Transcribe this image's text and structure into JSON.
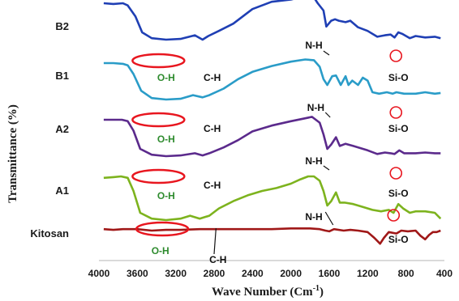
{
  "chart_data": {
    "type": "line",
    "xlabel": "Wave Number (Cm",
    "xlabel_sup": "-1",
    "xlabel_end": ")",
    "ylabel": "Transmittance (%)",
    "x_ticks": [
      4000,
      3600,
      3200,
      2800,
      2400,
      2000,
      1600,
      1200,
      800,
      400
    ],
    "x_tick_labels": [
      "4000",
      "3600",
      "3200",
      "2800",
      "2400",
      "2000",
      "1600",
      "1200",
      "800",
      "400"
    ],
    "xlim": [
      4000,
      400
    ],
    "series": [
      {
        "name": "B2",
        "color": "#1f3fb4",
        "points": [
          [
            3950,
            80
          ],
          [
            3850,
            79
          ],
          [
            3750,
            80
          ],
          [
            3700,
            77
          ],
          [
            3620,
            62
          ],
          [
            3550,
            40
          ],
          [
            3450,
            32
          ],
          [
            3300,
            30
          ],
          [
            3150,
            31
          ],
          [
            3000,
            36
          ],
          [
            2920,
            30
          ],
          [
            2860,
            35
          ],
          [
            2750,
            42
          ],
          [
            2600,
            52
          ],
          [
            2500,
            62
          ],
          [
            2400,
            72
          ],
          [
            2200,
            82
          ],
          [
            2000,
            85
          ],
          [
            1850,
            90
          ],
          [
            1780,
            92
          ],
          [
            1720,
            80
          ],
          [
            1660,
            70
          ],
          [
            1630,
            48
          ],
          [
            1580,
            56
          ],
          [
            1540,
            58
          ],
          [
            1500,
            56
          ],
          [
            1430,
            54
          ],
          [
            1380,
            56
          ],
          [
            1300,
            47
          ],
          [
            1200,
            42
          ],
          [
            1100,
            34
          ],
          [
            1020,
            36
          ],
          [
            960,
            37
          ],
          [
            920,
            33
          ],
          [
            880,
            40
          ],
          [
            840,
            38
          ],
          [
            760,
            32
          ],
          [
            700,
            35
          ],
          [
            600,
            33
          ],
          [
            500,
            34
          ],
          [
            440,
            32
          ]
        ],
        "labels": [
          {
            "text": "N-H",
            "color": "black"
          },
          {
            "text": "C-H",
            "color": "black"
          },
          {
            "text": "Si-O",
            "color": "black"
          }
        ]
      },
      {
        "name": "B1",
        "color": "#2a9cc8",
        "points": [
          [
            3950,
            80
          ],
          [
            3850,
            80
          ],
          [
            3750,
            79
          ],
          [
            3700,
            77
          ],
          [
            3640,
            65
          ],
          [
            3560,
            42
          ],
          [
            3450,
            32
          ],
          [
            3300,
            30
          ],
          [
            3150,
            31
          ],
          [
            3020,
            36
          ],
          [
            2920,
            33
          ],
          [
            2850,
            36
          ],
          [
            2700,
            45
          ],
          [
            2550,
            58
          ],
          [
            2400,
            68
          ],
          [
            2200,
            76
          ],
          [
            2000,
            82
          ],
          [
            1850,
            85
          ],
          [
            1760,
            84
          ],
          [
            1700,
            75
          ],
          [
            1660,
            58
          ],
          [
            1620,
            50
          ],
          [
            1570,
            62
          ],
          [
            1530,
            63
          ],
          [
            1480,
            50
          ],
          [
            1430,
            62
          ],
          [
            1400,
            50
          ],
          [
            1360,
            56
          ],
          [
            1300,
            50
          ],
          [
            1250,
            60
          ],
          [
            1200,
            56
          ],
          [
            1150,
            40
          ],
          [
            1080,
            38
          ],
          [
            1000,
            40
          ],
          [
            940,
            38
          ],
          [
            900,
            40
          ],
          [
            820,
            38
          ],
          [
            700,
            38
          ],
          [
            600,
            40
          ],
          [
            500,
            38
          ],
          [
            440,
            39
          ]
        ],
        "labels": [
          {
            "text": "N-H",
            "color": "black"
          },
          {
            "text": "C-H",
            "color": "black"
          },
          {
            "text": "Si-O",
            "color": "black"
          }
        ]
      },
      {
        "name": "A2",
        "color": "#5b2a8c",
        "points": [
          [
            3950,
            80
          ],
          [
            3850,
            80
          ],
          [
            3760,
            80
          ],
          [
            3700,
            78
          ],
          [
            3640,
            65
          ],
          [
            3570,
            40
          ],
          [
            3450,
            32
          ],
          [
            3300,
            30
          ],
          [
            3150,
            31
          ],
          [
            3000,
            34
          ],
          [
            2920,
            31
          ],
          [
            2850,
            34
          ],
          [
            2700,
            42
          ],
          [
            2550,
            52
          ],
          [
            2400,
            64
          ],
          [
            2200,
            72
          ],
          [
            2000,
            78
          ],
          [
            1850,
            82
          ],
          [
            1780,
            84
          ],
          [
            1700,
            76
          ],
          [
            1660,
            60
          ],
          [
            1620,
            40
          ],
          [
            1580,
            46
          ],
          [
            1530,
            56
          ],
          [
            1490,
            44
          ],
          [
            1430,
            47
          ],
          [
            1350,
            44
          ],
          [
            1200,
            38
          ],
          [
            1100,
            33
          ],
          [
            1020,
            35
          ],
          [
            960,
            34
          ],
          [
            920,
            33
          ],
          [
            870,
            38
          ],
          [
            820,
            34
          ],
          [
            700,
            34
          ],
          [
            600,
            35
          ],
          [
            500,
            34
          ],
          [
            440,
            34
          ]
        ],
        "labels": [
          {
            "text": "N-H",
            "color": "black"
          },
          {
            "text": "C-H",
            "color": "black"
          },
          {
            "text": "Si-O",
            "color": "black"
          }
        ]
      },
      {
        "name": "A1",
        "color": "#7db31e",
        "points": [
          [
            3950,
            78
          ],
          [
            3850,
            79
          ],
          [
            3770,
            80
          ],
          [
            3700,
            78
          ],
          [
            3640,
            60
          ],
          [
            3570,
            30
          ],
          [
            3450,
            22
          ],
          [
            3300,
            20
          ],
          [
            3150,
            22
          ],
          [
            3050,
            26
          ],
          [
            2950,
            22
          ],
          [
            2850,
            26
          ],
          [
            2750,
            36
          ],
          [
            2600,
            46
          ],
          [
            2450,
            54
          ],
          [
            2300,
            60
          ],
          [
            2150,
            64
          ],
          [
            2000,
            70
          ],
          [
            1900,
            76
          ],
          [
            1820,
            80
          ],
          [
            1760,
            80
          ],
          [
            1700,
            74
          ],
          [
            1660,
            60
          ],
          [
            1620,
            40
          ],
          [
            1580,
            46
          ],
          [
            1530,
            58
          ],
          [
            1490,
            44
          ],
          [
            1440,
            44
          ],
          [
            1350,
            42
          ],
          [
            1250,
            38
          ],
          [
            1150,
            34
          ],
          [
            1060,
            32
          ],
          [
            980,
            34
          ],
          [
            930,
            30
          ],
          [
            880,
            42
          ],
          [
            830,
            36
          ],
          [
            760,
            30
          ],
          [
            700,
            32
          ],
          [
            600,
            32
          ],
          [
            500,
            30
          ],
          [
            440,
            22
          ]
        ],
        "labels": [
          {
            "text": "N-H",
            "color": "black"
          },
          {
            "text": "Si-O",
            "color": "black"
          }
        ]
      },
      {
        "name": "Kitosan",
        "color": "#a01818",
        "points": [
          [
            3950,
            72
          ],
          [
            3850,
            71
          ],
          [
            3750,
            72
          ],
          [
            3600,
            72
          ],
          [
            3450,
            70
          ],
          [
            3300,
            71
          ],
          [
            3150,
            71
          ],
          [
            2950,
            72
          ],
          [
            2800,
            72
          ],
          [
            2600,
            72
          ],
          [
            2400,
            72
          ],
          [
            2200,
            72
          ],
          [
            2000,
            73
          ],
          [
            1800,
            73
          ],
          [
            1700,
            72
          ],
          [
            1640,
            70
          ],
          [
            1600,
            69
          ],
          [
            1550,
            72
          ],
          [
            1450,
            70
          ],
          [
            1380,
            71
          ],
          [
            1300,
            70
          ],
          [
            1200,
            68
          ],
          [
            1130,
            60
          ],
          [
            1070,
            52
          ],
          [
            1030,
            60
          ],
          [
            980,
            68
          ],
          [
            900,
            66
          ],
          [
            850,
            70
          ],
          [
            780,
            69
          ],
          [
            700,
            70
          ],
          [
            650,
            63
          ],
          [
            600,
            58
          ],
          [
            560,
            64
          ],
          [
            520,
            68
          ],
          [
            480,
            68
          ],
          [
            440,
            70
          ]
        ],
        "labels": [
          {
            "text": "O-H",
            "color": "green"
          },
          {
            "text": "C-H",
            "color": "black"
          }
        ]
      }
    ],
    "oh_label": "O-H"
  }
}
